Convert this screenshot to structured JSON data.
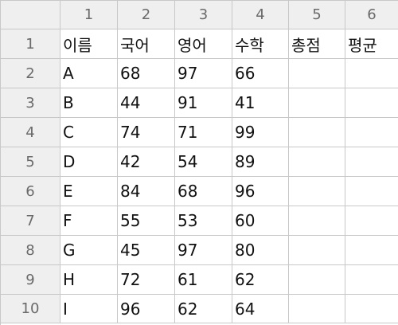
{
  "sheet": {
    "column_headers": [
      "1",
      "2",
      "3",
      "4",
      "5",
      "6"
    ],
    "row_headers": [
      "1",
      "2",
      "3",
      "4",
      "5",
      "6",
      "7",
      "8",
      "9",
      "10"
    ],
    "rows": [
      [
        "이름",
        "국어",
        "영어",
        "수학",
        "총점",
        "평균"
      ],
      [
        "A",
        "68",
        "97",
        "66",
        "",
        ""
      ],
      [
        "B",
        "44",
        "91",
        "41",
        "",
        ""
      ],
      [
        "C",
        "74",
        "71",
        "99",
        "",
        ""
      ],
      [
        "D",
        "42",
        "54",
        "89",
        "",
        ""
      ],
      [
        "E",
        "84",
        "68",
        "96",
        "",
        ""
      ],
      [
        "F",
        "55",
        "53",
        "60",
        "",
        ""
      ],
      [
        "G",
        "45",
        "97",
        "80",
        "",
        ""
      ],
      [
        "H",
        "72",
        "61",
        "62",
        "",
        ""
      ],
      [
        "I",
        "96",
        "62",
        "64",
        "",
        ""
      ]
    ]
  }
}
